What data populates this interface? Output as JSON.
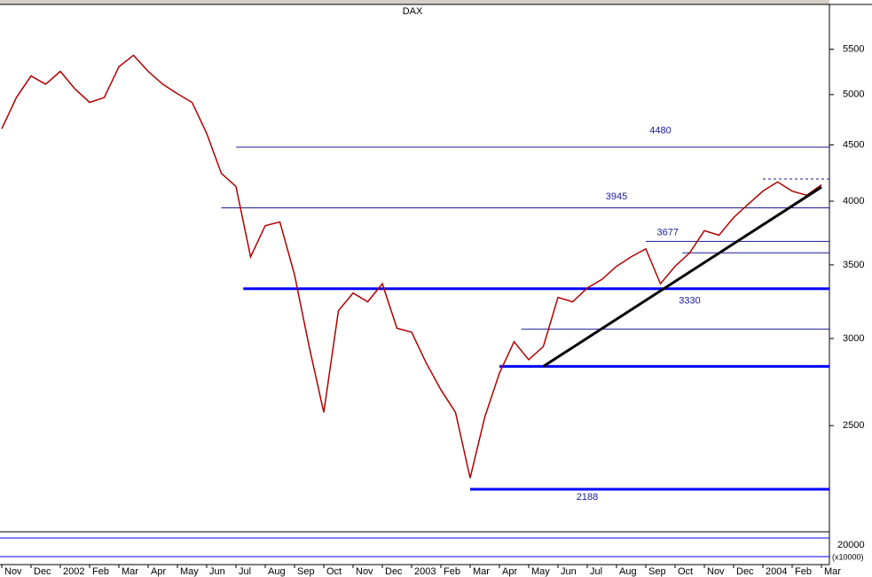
{
  "chart_data": {
    "type": "line",
    "title": "DAX",
    "log_scale": true,
    "ylim": [
      2020,
      6040
    ],
    "yticks": [
      2500,
      3000,
      3500,
      4000,
      4500,
      5000,
      5500
    ],
    "categories": [
      "Nov",
      null,
      "Dec",
      null,
      "2002",
      null,
      "Feb",
      null,
      "Mar",
      null,
      "Apr",
      null,
      "May",
      null,
      "Jun",
      null,
      "Jul",
      null,
      "Aug",
      null,
      "Sep",
      null,
      "Oct",
      null,
      "Nov",
      null,
      "Dec",
      null,
      "2003",
      null,
      "Feb",
      null,
      "Mar",
      null,
      "Apr",
      null,
      "May",
      null,
      "Jun",
      null,
      "Jul",
      null,
      "Aug",
      null,
      "Sep",
      null,
      "Oct",
      null,
      "Nov",
      null,
      "Dec",
      null,
      "2004",
      null,
      "Feb",
      null,
      "Mar"
    ],
    "series": [
      {
        "color": "#b00000",
        "values": [
          4655,
          4970,
          5200,
          5110,
          5250,
          5060,
          4920,
          4970,
          5300,
          5430,
          5250,
          5110,
          5010,
          4920,
          4610,
          4240,
          4125,
          3560,
          3800,
          3830,
          3430,
          2950,
          2570,
          3180,
          3300,
          3240,
          3365,
          3065,
          3040,
          2850,
          2695,
          2570,
          2240,
          2545,
          2790,
          2980,
          2870,
          2950,
          3270,
          3240,
          3335,
          3395,
          3490,
          3560,
          3620,
          3365,
          3490,
          3590,
          3760,
          3725,
          3865,
          3975,
          4085,
          4165,
          4085,
          4050,
          4140
        ]
      }
    ],
    "levels": [
      {
        "value": 4480,
        "label": "4480",
        "start": 16,
        "label_x": 45,
        "label_y": 4637,
        "color": "#1a1a9c",
        "thick": false
      },
      {
        "value": 3945,
        "label": "3945",
        "start": 15,
        "label_x": 42,
        "label_y": 4036,
        "color": "#1a1a9c",
        "thick": false
      },
      {
        "value": 3677,
        "label": "3677",
        "start": 44,
        "label_x": 45.5,
        "label_y": 3745,
        "color": "#1a1a9c",
        "thick": false
      },
      {
        "value": 3330,
        "label": "3330",
        "start": 16.5,
        "label_x": 47,
        "label_y": 3245,
        "color": "#0000ff",
        "thick": true
      },
      {
        "value": 2188,
        "label": "2188",
        "start": 32,
        "label_x": 40,
        "label_y": 2151,
        "color": "#0000ff",
        "thick": true
      },
      {
        "value": 2830,
        "start": 34,
        "color": "#0000ff",
        "thick": true
      },
      {
        "value": 3060,
        "start": 35.5,
        "color": "#1a1a9c",
        "thick": false
      },
      {
        "value": 3590,
        "start": 46.5,
        "color": "#1a1a9c",
        "thick": false
      },
      {
        "value": 4190,
        "start": 52,
        "color": "#1a1a9c",
        "thick": false,
        "dashed": true
      }
    ],
    "trendline": {
      "start": [
        37,
        2830
      ],
      "end": [
        56,
        4120
      ],
      "color": "#000000"
    },
    "lower_panel_labels": [
      "20000",
      "(x10000)"
    ]
  }
}
